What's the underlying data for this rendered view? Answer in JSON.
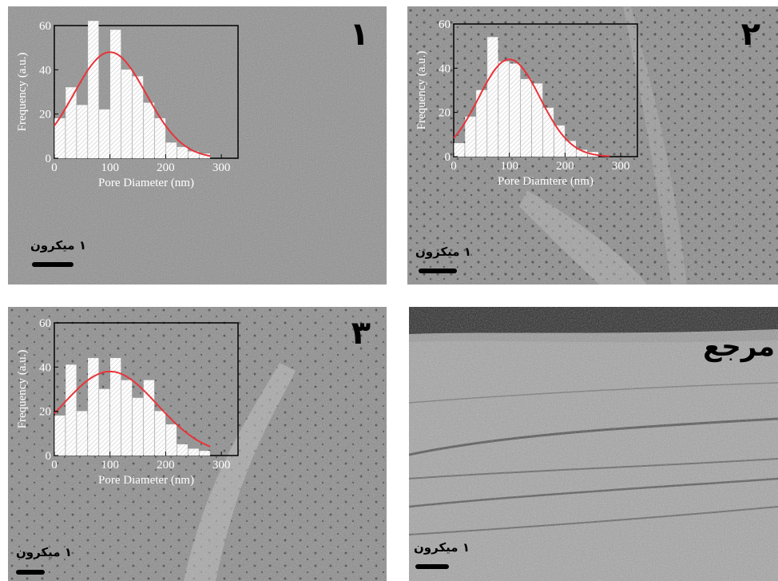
{
  "colors": {
    "fit_curve": "#e8343a",
    "bar_fill": "#ffffff",
    "frame": "#000000",
    "scale_bar": "#000000"
  },
  "panels": [
    {
      "label": "۱",
      "scale_label": "۱ میکرون"
    },
    {
      "label": "۲",
      "scale_label": "۱ میکرون"
    },
    {
      "label": "۳",
      "scale_label": "۱ میکرون"
    },
    {
      "label": "مرجع",
      "scale_label": "۱ میکرون"
    }
  ],
  "chart_data": [
    {
      "type": "bar",
      "xlabel": "Pore Diameter (nm)",
      "ylabel": "Frequency (a.u.)",
      "xlim": [
        0,
        330
      ],
      "ylim": [
        0,
        60
      ],
      "xticks": [
        "0",
        "100",
        "200",
        "300"
      ],
      "yticks": [
        "0",
        "20",
        "40",
        "60"
      ],
      "bin_width": 20,
      "x": [
        10,
        30,
        50,
        70,
        90,
        110,
        130,
        150,
        170,
        190,
        210,
        230,
        250,
        270
      ],
      "values": [
        18,
        32,
        24,
        62,
        22,
        58,
        40,
        37,
        25,
        18,
        7,
        5,
        3,
        2
      ],
      "fit": {
        "type": "gaussian",
        "peak": 48,
        "center": 100,
        "sigma": 65
      }
    },
    {
      "type": "bar",
      "xlabel": "Pore Diamtere (nm)",
      "ylabel": "Frequency (a.u.)",
      "xlim": [
        0,
        330
      ],
      "ylim": [
        0,
        60
      ],
      "xticks": [
        "0",
        "100",
        "200",
        "300"
      ],
      "yticks": [
        "0",
        "20",
        "40",
        "60"
      ],
      "bin_width": 20,
      "x": [
        10,
        30,
        50,
        70,
        90,
        110,
        130,
        150,
        170,
        190,
        210,
        230,
        250
      ],
      "values": [
        6,
        18,
        30,
        54,
        43,
        42,
        35,
        33,
        22,
        14,
        7,
        3,
        2
      ],
      "fit": {
        "type": "gaussian",
        "peak": 44,
        "center": 100,
        "sigma": 55
      }
    },
    {
      "type": "bar",
      "xlabel": "Pore Diameter (nm)",
      "ylabel": "Frequency (a.u.)",
      "xlim": [
        0,
        330
      ],
      "ylim": [
        0,
        60
      ],
      "xticks": [
        "0",
        "100",
        "200",
        "300"
      ],
      "yticks": [
        "0",
        "20",
        "40",
        "60"
      ],
      "bin_width": 20,
      "x": [
        10,
        30,
        50,
        70,
        90,
        110,
        130,
        150,
        170,
        190,
        210,
        230,
        250,
        270
      ],
      "values": [
        18,
        41,
        20,
        44,
        30,
        44,
        34,
        26,
        34,
        20,
        14,
        5,
        3,
        2
      ],
      "fit": {
        "type": "gaussian",
        "peak": 38,
        "center": 100,
        "sigma": 85
      }
    }
  ]
}
